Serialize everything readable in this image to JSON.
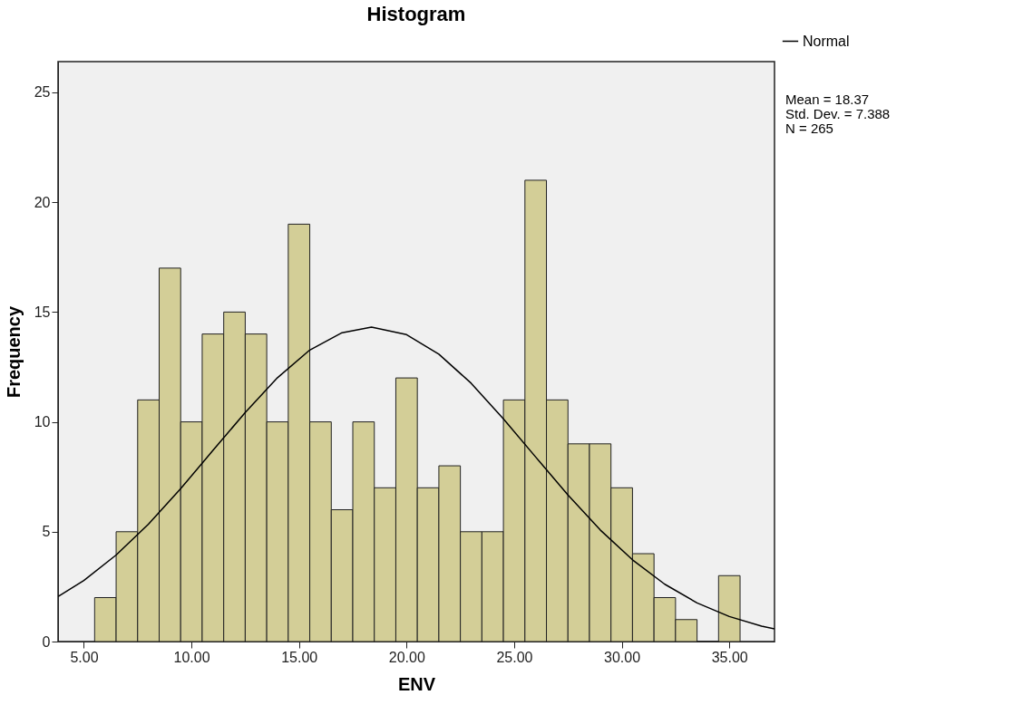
{
  "chart_data": {
    "type": "histogram",
    "title": "Histogram",
    "xlabel": "ENV",
    "ylabel": "Frequency",
    "bins": [
      5.5,
      6.5,
      7.5,
      8.5,
      9.5,
      10.5,
      11.5,
      12.5,
      13.5,
      14.5,
      15.5,
      16.5,
      17.5,
      18.5,
      19.5,
      20.5,
      21.5,
      22.5,
      23.5,
      24.5,
      25.5,
      26.5,
      27.5,
      28.5,
      29.5,
      30.5,
      31.5,
      32.5,
      33.5,
      34.5,
      35.5
    ],
    "values": [
      2,
      5,
      11,
      17,
      10,
      14,
      15,
      14,
      10,
      19,
      10,
      6,
      10,
      7,
      12,
      7,
      8,
      5,
      5,
      11,
      21,
      11,
      9,
      9,
      7,
      4,
      2,
      1,
      0,
      3
    ],
    "color": "#d3ce97",
    "series": [
      {
        "name": "Normal",
        "type": "line",
        "color": "#000000",
        "x": [
          3.8,
          5,
          6.5,
          8,
          9.5,
          11,
          12.5,
          14,
          15.5,
          17,
          18.37,
          20,
          21.5,
          23,
          24.5,
          26,
          27.5,
          29,
          30.5,
          32,
          33.5,
          35,
          36.5,
          37.1
        ],
        "values": [
          2.05,
          2.78,
          3.94,
          5.34,
          6.96,
          8.7,
          10.43,
          12.01,
          13.27,
          14.06,
          14.31,
          13.97,
          13.08,
          11.76,
          10.14,
          8.4,
          6.67,
          5.08,
          3.72,
          2.61,
          1.76,
          1.14,
          0.7,
          0.58
        ]
      }
    ],
    "xlim": [
      3.8,
      37.1
    ],
    "xticks": [
      {
        "value": 5,
        "label": "5.00"
      },
      {
        "value": 10,
        "label": "10.00"
      },
      {
        "value": 15,
        "label": "15.00"
      },
      {
        "value": 20,
        "label": "20.00"
      },
      {
        "value": 25,
        "label": "25.00"
      },
      {
        "value": 30,
        "label": "30.00"
      },
      {
        "value": 35,
        "label": "35.00"
      }
    ],
    "ylim": [
      0,
      26.4
    ],
    "yticks": [
      0,
      5,
      10,
      15,
      20,
      25
    ],
    "grid": false,
    "legend": "top right",
    "annotations": [
      "Mean = 18.37",
      "Std. Dev. = 7.388",
      "N = 265"
    ]
  }
}
